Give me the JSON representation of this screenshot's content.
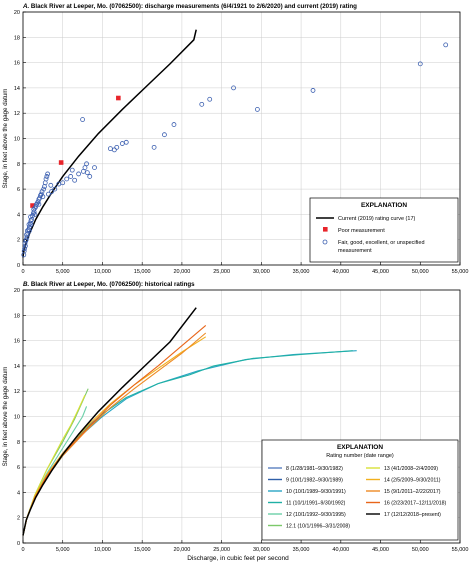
{
  "figure": {
    "xlabel": "Discharge, in cubic feet per second",
    "colors": {
      "axis": "#000000",
      "grid": "#cccccc",
      "current_curve": "#000000",
      "poor": "#e8252b",
      "fair": "#3b5fb0"
    }
  },
  "chart_data": [
    {
      "type": "scatter",
      "title": "A. Black River at Leeper, Mo. (07062500): discharge measurements (6/4/1921 to 2/6/2020) and current (2019) rating",
      "ylabel": "Stage, in feet above the gage datum",
      "xlabel": "",
      "xlim": [
        0,
        55000
      ],
      "ylim": [
        0,
        20
      ],
      "grid": true,
      "legend": {
        "title": "EXPLANATION",
        "placement": "lower-right",
        "items": [
          {
            "label": "Current (2019) rating curve (17)",
            "marker": "line"
          },
          {
            "label": "Poor measurement",
            "marker": "square"
          },
          {
            "label": "Fair, good, excellent, or unspecified",
            "label2": "measurement",
            "marker": "circle"
          }
        ]
      },
      "series": [
        {
          "name": "Current (2019) rating curve (17)",
          "type": "line",
          "points": [
            [
              0,
              0.6
            ],
            [
              50,
              0.9
            ],
            [
              150,
              1.2
            ],
            [
              400,
              1.8
            ],
            [
              900,
              2.6
            ],
            [
              1600,
              3.6
            ],
            [
              2500,
              4.6
            ],
            [
              3600,
              5.7
            ],
            [
              5000,
              7.0
            ],
            [
              7000,
              8.6
            ],
            [
              9500,
              10.4
            ],
            [
              12500,
              12.3
            ],
            [
              15500,
              14.1
            ],
            [
              18500,
              15.9
            ],
            [
              21500,
              17.8
            ],
            [
              21800,
              18.6
            ]
          ]
        },
        {
          "name": "Poor measurement",
          "type": "scatter",
          "points": [
            [
              1200,
              4.7
            ],
            [
              4800,
              8.1
            ],
            [
              12000,
              13.2
            ]
          ]
        },
        {
          "name": "Fair, good, excellent, or unspecified measurement",
          "type": "scatter",
          "points": [
            [
              100,
              0.8
            ],
            [
              150,
              1.1
            ],
            [
              200,
              1.3
            ],
            [
              300,
              1.5
            ],
            [
              250,
              1.7
            ],
            [
              350,
              1.9
            ],
            [
              400,
              2.0
            ],
            [
              500,
              2.2
            ],
            [
              450,
              2.4
            ],
            [
              600,
              2.5
            ],
            [
              550,
              2.7
            ],
            [
              700,
              2.8
            ],
            [
              800,
              3.0
            ],
            [
              750,
              3.2
            ],
            [
              900,
              3.3
            ],
            [
              1000,
              3.5
            ],
            [
              1100,
              3.6
            ],
            [
              950,
              3.8
            ],
            [
              1200,
              3.9
            ],
            [
              1300,
              4.1
            ],
            [
              1400,
              4.2
            ],
            [
              1350,
              4.4
            ],
            [
              1500,
              4.5
            ],
            [
              1600,
              4.6
            ],
            [
              1700,
              4.8
            ],
            [
              1800,
              4.9
            ],
            [
              1900,
              5.0
            ],
            [
              2000,
              5.2
            ],
            [
              2100,
              5.3
            ],
            [
              2200,
              5.5
            ],
            [
              2300,
              5.6
            ],
            [
              2400,
              5.8
            ],
            [
              2600,
              6.0
            ],
            [
              2700,
              6.2
            ],
            [
              2800,
              6.5
            ],
            [
              2900,
              6.8
            ],
            [
              3000,
              7.0
            ],
            [
              3100,
              7.2
            ],
            [
              2500,
              5.4
            ],
            [
              2000,
              4.8
            ],
            [
              1500,
              4.0
            ],
            [
              1000,
              3.2
            ],
            [
              800,
              2.7
            ],
            [
              3200,
              5.6
            ],
            [
              3600,
              5.8
            ],
            [
              4000,
              6.0
            ],
            [
              3500,
              6.3
            ],
            [
              4500,
              6.4
            ],
            [
              5000,
              6.5
            ],
            [
              5500,
              6.8
            ],
            [
              6000,
              7.0
            ],
            [
              6500,
              6.7
            ],
            [
              7000,
              7.2
            ],
            [
              7600,
              7.4
            ],
            [
              7800,
              7.7
            ],
            [
              8000,
              8.0
            ],
            [
              8100,
              7.3
            ],
            [
              8400,
              7.0
            ],
            [
              6200,
              7.5
            ],
            [
              9000,
              7.7
            ],
            [
              11000,
              9.2
            ],
            [
              11500,
              9.1
            ],
            [
              11800,
              9.3
            ],
            [
              12500,
              9.6
            ],
            [
              13000,
              9.7
            ],
            [
              7500,
              11.5
            ],
            [
              16500,
              9.3
            ],
            [
              17800,
              10.3
            ],
            [
              19000,
              11.1
            ],
            [
              22500,
              12.7
            ],
            [
              23500,
              13.1
            ],
            [
              26500,
              14.0
            ],
            [
              29500,
              12.3
            ],
            [
              36500,
              13.8
            ],
            [
              50000,
              15.9
            ],
            [
              53200,
              17.4
            ]
          ]
        }
      ]
    },
    {
      "type": "line",
      "title": "B. Black River at Leeper, Mo. (07062500): historical ratings",
      "ylabel": "Stage, in feet above the gage datum",
      "xlabel": "Discharge, in cubic feet per second",
      "xlim": [
        0,
        55000
      ],
      "ylim": [
        0,
        20
      ],
      "grid": true,
      "legend": {
        "title": "EXPLANATION",
        "subtitle": "Rating number (date range)",
        "placement": "lower-right"
      },
      "series": [
        {
          "name": "8 (1/28/1981–9/30/1982)",
          "color": "#5b7fc0",
          "points": [
            [
              0,
              0.6
            ],
            [
              500,
              2.0
            ],
            [
              1500,
              3.7
            ],
            [
              3000,
              5.4
            ],
            [
              5000,
              7.1
            ],
            [
              6500,
              8.2
            ],
            [
              8000,
              9.2
            ],
            [
              9500,
              9.9
            ]
          ]
        },
        {
          "name": "9 (10/1/1982–9/30/1989)",
          "color": "#2f5fa8",
          "points": [
            [
              0,
              0.6
            ],
            [
              500,
              2.0
            ],
            [
              1500,
              3.7
            ],
            [
              3000,
              5.3
            ],
            [
              5000,
              7.0
            ],
            [
              7000,
              8.4
            ],
            [
              9000,
              9.6
            ],
            [
              10000,
              10.0
            ]
          ]
        },
        {
          "name": "10 (10/1/1989–9/30/1991)",
          "color": "#2aa6c4",
          "points": [
            [
              0,
              0.6
            ],
            [
              500,
              2.0
            ],
            [
              1500,
              3.6
            ],
            [
              3000,
              5.2
            ],
            [
              5000,
              6.9
            ],
            [
              7500,
              8.6
            ],
            [
              10000,
              10.0
            ],
            [
              13000,
              11.4
            ],
            [
              17000,
              12.6
            ],
            [
              22000,
              13.6
            ],
            [
              28000,
              14.5
            ],
            [
              34000,
              14.9
            ],
            [
              42000,
              15.2
            ]
          ]
        },
        {
          "name": "11 (10/1/1991–9/30/1992)",
          "color": "#1fb0a5",
          "points": [
            [
              0,
              0.6
            ],
            [
              500,
              2.0
            ],
            [
              1500,
              3.6
            ],
            [
              3000,
              5.2
            ],
            [
              5000,
              6.9
            ],
            [
              7500,
              8.8
            ],
            [
              10000,
              10.2
            ],
            [
              13000,
              11.5
            ],
            [
              17000,
              12.6
            ],
            [
              21000,
              13.3
            ],
            [
              24000,
              14.0
            ],
            [
              29000,
              14.6
            ],
            [
              35000,
              14.9
            ],
            [
              41500,
              15.2
            ]
          ]
        },
        {
          "name": "12 (10/1/1992–9/30/1995)",
          "color": "#6ccfa8",
          "points": [
            [
              0,
              0.6
            ],
            [
              500,
              2.0
            ],
            [
              1500,
              3.7
            ],
            [
              3000,
              5.5
            ],
            [
              5000,
              7.5
            ],
            [
              6500,
              9.0
            ],
            [
              7500,
              10.0
            ],
            [
              8000,
              10.8
            ]
          ]
        },
        {
          "name": "12.1 (10/1/1996–3/31/2008)",
          "color": "#7cc96a",
          "points": [
            [
              0,
              0.6
            ],
            [
              500,
              2.0
            ],
            [
              1500,
              3.8
            ],
            [
              3000,
              5.8
            ],
            [
              5000,
              8.0
            ],
            [
              6500,
              9.8
            ],
            [
              7500,
              11.2
            ],
            [
              8200,
              12.2
            ]
          ]
        },
        {
          "name": "13 (4/1/2008–2/4/2009)",
          "color": "#d8e038",
          "points": [
            [
              0,
              0.6
            ],
            [
              500,
              2.0
            ],
            [
              1500,
              3.8
            ],
            [
              3000,
              5.8
            ],
            [
              5000,
              8.2
            ],
            [
              6000,
              9.3
            ],
            [
              7000,
              10.6
            ],
            [
              7800,
              11.7
            ]
          ]
        },
        {
          "name": "14 (2/5/2009–9/30/2011)",
          "color": "#f2b01e",
          "points": [
            [
              0,
              0.6
            ],
            [
              500,
              2.0
            ],
            [
              1500,
              3.7
            ],
            [
              3000,
              5.4
            ],
            [
              5000,
              7.1
            ],
            [
              8000,
              9.2
            ],
            [
              11000,
              11.0
            ],
            [
              14000,
              12.5
            ],
            [
              17000,
              13.8
            ],
            [
              20000,
              15.1
            ],
            [
              23000,
              16.3
            ]
          ]
        },
        {
          "name": "15 (9/1/2011–2/22/2017)",
          "color": "#ee8a24",
          "points": [
            [
              0,
              0.6
            ],
            [
              500,
              2.0
            ],
            [
              1500,
              3.6
            ],
            [
              3000,
              5.2
            ],
            [
              5000,
              6.9
            ],
            [
              8000,
              8.9
            ],
            [
              11000,
              10.7
            ],
            [
              14000,
              12.2
            ],
            [
              17000,
              13.6
            ],
            [
              20000,
              15.0
            ],
            [
              23000,
              16.6
            ]
          ]
        },
        {
          "name": "16 (2/23/2017–12/11/2018)",
          "color": "#e8651a",
          "points": [
            [
              0,
              0.6
            ],
            [
              500,
              2.0
            ],
            [
              1500,
              3.6
            ],
            [
              3000,
              5.3
            ],
            [
              5000,
              7.0
            ],
            [
              8000,
              9.0
            ],
            [
              11000,
              10.9
            ],
            [
              14000,
              12.5
            ],
            [
              17000,
              14.0
            ],
            [
              20000,
              15.6
            ],
            [
              23000,
              17.2
            ]
          ]
        },
        {
          "name": "17 (12/12/2018–present)",
          "color": "#000000",
          "points": [
            [
              0,
              0.6
            ],
            [
              400,
              1.8
            ],
            [
              900,
              2.6
            ],
            [
              1600,
              3.6
            ],
            [
              2500,
              4.6
            ],
            [
              3600,
              5.7
            ],
            [
              5000,
              7.0
            ],
            [
              7000,
              8.6
            ],
            [
              9500,
              10.4
            ],
            [
              12500,
              12.3
            ],
            [
              15500,
              14.1
            ],
            [
              18500,
              15.9
            ],
            [
              21800,
              18.6
            ]
          ]
        }
      ]
    }
  ]
}
